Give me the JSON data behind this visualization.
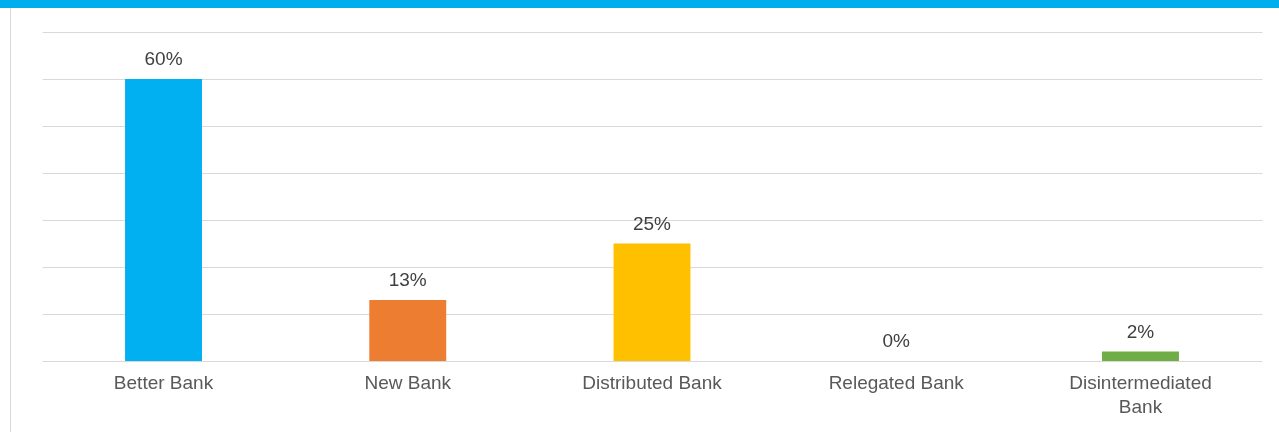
{
  "chart_data": {
    "type": "bar",
    "categories": [
      "Better Bank",
      "New Bank",
      "Distributed Bank",
      "Relegated Bank",
      "Disintermediated Bank"
    ],
    "values": [
      60,
      13,
      25,
      0,
      2
    ],
    "colors": [
      "#00b0f0",
      "#ed7d31",
      "#ffc000",
      "#a5a5a5",
      "#70ad47"
    ],
    "value_labels": [
      "60%",
      "13%",
      "25%",
      "0%",
      "2%"
    ],
    "ylim": [
      0,
      70
    ],
    "yticks": [
      0,
      10,
      20,
      30,
      40,
      50,
      60,
      70
    ],
    "grid": "y",
    "tick_labels": "x"
  }
}
